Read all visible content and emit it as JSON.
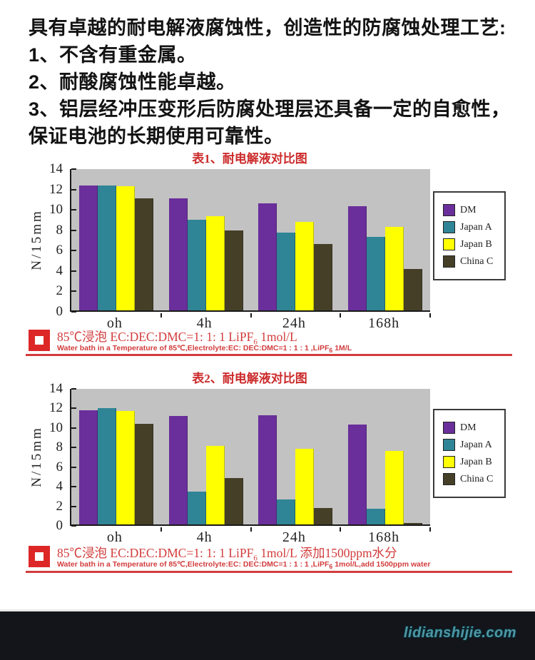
{
  "intro": {
    "lines": [
      "具有卓越的耐电解液腐蚀性，创造性的防腐蚀处理工艺:",
      "1、不含有重金属。",
      "2、耐酸腐蚀性能卓越。",
      "3、铝层经冲压变形后防腐处理层还具备一定的自愈性，",
      "保证电池的长期使用可靠性。"
    ]
  },
  "chart_data": [
    {
      "type": "bar",
      "title": "表1、耐电解液对比图",
      "ylabel": "N/15mm",
      "ylim": [
        0,
        14
      ],
      "yticks": [
        0,
        2,
        4,
        6,
        8,
        10,
        12,
        14
      ],
      "grid": false,
      "plot_bg": "#c2c2c2",
      "legend_position": "right",
      "categories": [
        "oh",
        "4h",
        "24h",
        "168h"
      ],
      "series": [
        {
          "name": "DM",
          "color": "#6a2f9b",
          "values": [
            12.4,
            11.1,
            10.6,
            10.3
          ]
        },
        {
          "name": "Japan A",
          "color": "#2f8595",
          "values": [
            12.4,
            9.0,
            7.7,
            7.3
          ]
        },
        {
          "name": "Japan B",
          "color": "#ffff00",
          "values": [
            12.3,
            9.3,
            8.8,
            8.3
          ]
        },
        {
          "name": "China C",
          "color": "#453f28",
          "values": [
            11.1,
            7.9,
            6.6,
            4.1
          ]
        }
      ],
      "caption": {
        "cn_pre": "85℃浸泡 EC:DEC:DMC=1: 1: 1 LiPF",
        "sub": "6",
        "cn_post": " 1mol/L",
        "en_pre": "Water bath in a Temperature of 85℃,Electrolyte:EC: DEC:DMC=1 : 1 : 1 ,LiPF",
        "en_sub": "6",
        "en_post": " 1M/L"
      }
    },
    {
      "type": "bar",
      "title": "表2、耐电解液对比图",
      "ylabel": "N/15mm",
      "ylim": [
        0,
        14
      ],
      "yticks": [
        0,
        2,
        4,
        6,
        8,
        10,
        12,
        14
      ],
      "grid": false,
      "plot_bg": "#c2c2c2",
      "legend_position": "right",
      "categories": [
        "oh",
        "4h",
        "24h",
        "168h"
      ],
      "series": [
        {
          "name": "DM",
          "color": "#6a2f9b",
          "values": [
            11.8,
            11.2,
            11.3,
            10.3
          ]
        },
        {
          "name": "Japan A",
          "color": "#2f8595",
          "values": [
            12.0,
            3.4,
            2.6,
            1.6
          ]
        },
        {
          "name": "Japan B",
          "color": "#ffff00",
          "values": [
            11.7,
            8.1,
            7.8,
            7.6
          ]
        },
        {
          "name": "China C",
          "color": "#453f28",
          "values": [
            10.4,
            4.8,
            1.7,
            0.15
          ]
        }
      ],
      "caption": {
        "cn_pre": "85℃浸泡 EC:DEC:DMC=1: 1: 1 LiPF",
        "sub": "6",
        "cn_post": " 1mol/L 添加1500ppm水分",
        "en_pre": "Water bath in a Temperature of 85℃,Electrolyte:EC: DEC:DMC=1 : 1 : 1 ,LiPF",
        "en_sub": "6",
        "en_post": " 1mol/L,add 1500ppm water"
      }
    }
  ],
  "icons": {
    "caption_bullet": "red-square-with-white-center"
  },
  "colors": {
    "accent_red": "#d23c3c",
    "bullet_red": "#dd2727",
    "plot_background": "#c2c2c2",
    "footer_background": "#14141b",
    "watermark_teal": "#4e97a6"
  },
  "footer": {
    "watermark": "lidianshijie.com"
  }
}
